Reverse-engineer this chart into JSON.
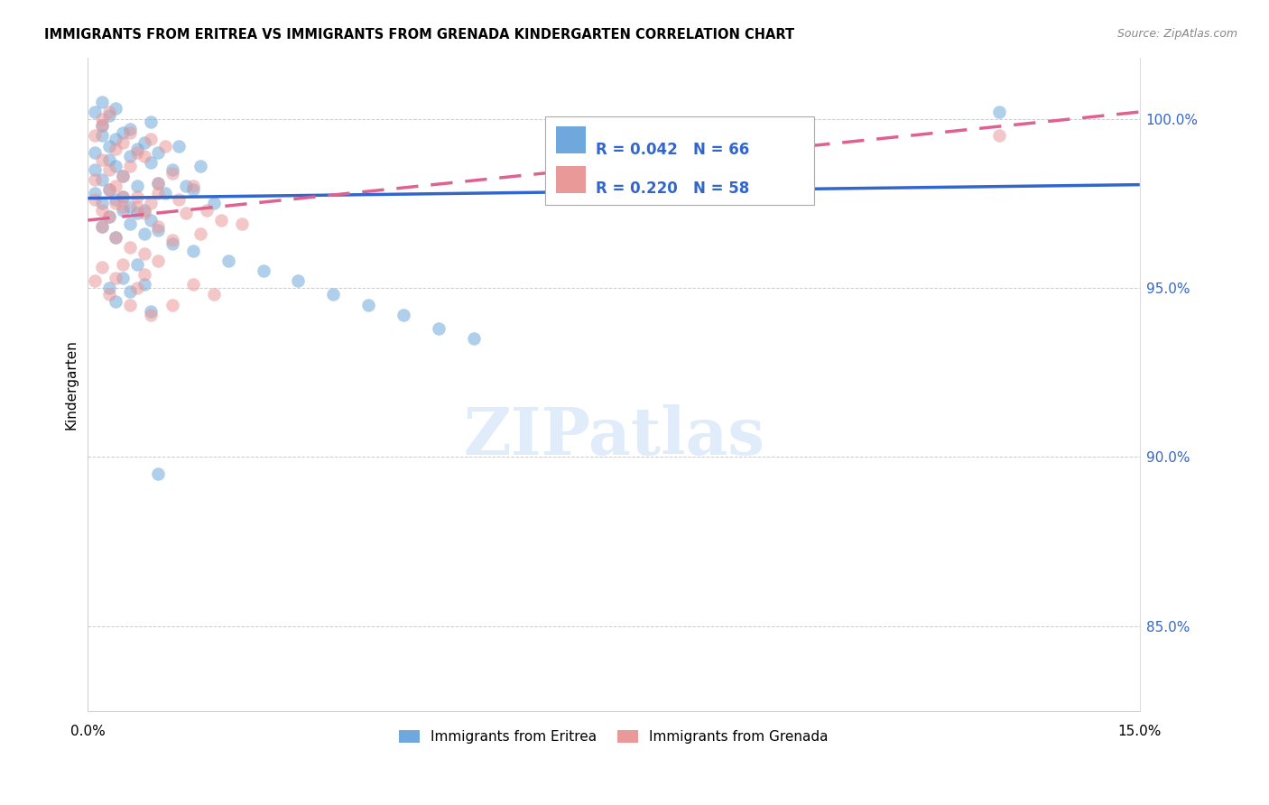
{
  "title": "IMMIGRANTS FROM ERITREA VS IMMIGRANTS FROM GRENADA KINDERGARTEN CORRELATION CHART",
  "source": "Source: ZipAtlas.com",
  "ylabel": "Kindergarten",
  "color_eritrea": "#6fa8dc",
  "color_grenada": "#ea9999",
  "color_line_eritrea": "#3366cc",
  "color_line_grenada": "#e06090",
  "xmin": 0.0,
  "xmax": 0.15,
  "ymin": 82.5,
  "ymax": 101.8,
  "yticks": [
    85.0,
    90.0,
    95.0,
    100.0
  ],
  "ytick_labels": [
    "85.0%",
    "90.0%",
    "95.0%",
    "100.0%"
  ],
  "line_eritrea": [
    97.65,
    98.05
  ],
  "line_grenada": [
    97.0,
    100.2
  ],
  "watermark_text": "ZIPatlas",
  "legend_text1": "R = 0.042   N = 66",
  "legend_text2": "R = 0.220   N = 58"
}
